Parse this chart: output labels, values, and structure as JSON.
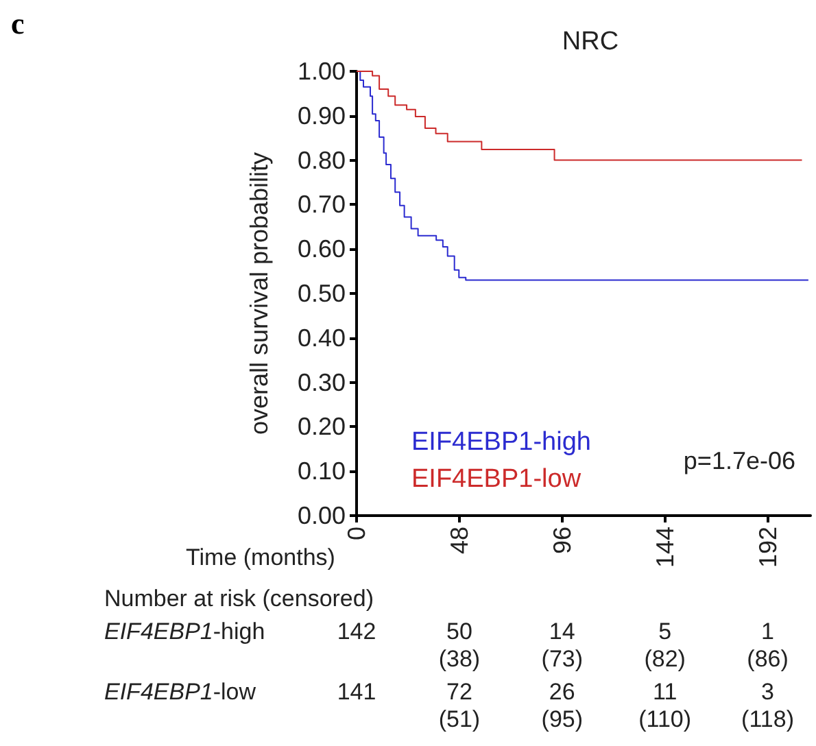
{
  "chart_data": {
    "type": "step",
    "title": "NRC",
    "xlabel": "Time (months)",
    "ylabel": "overall survival probability",
    "series": [
      {
        "name": "EIF4EBP1-high",
        "color": "#2b2bd0",
        "x": [
          0,
          1.7,
          3.2,
          6.4,
          7.4,
          8.9,
          10.6,
          12.7,
          13.8,
          16,
          18,
          20.2,
          22.3,
          25.5,
          28.7,
          37.2,
          40.3,
          42.5,
          45.7,
          47.8,
          51,
          211
        ],
        "values": [
          1.0,
          0.98,
          0.965,
          0.944,
          0.904,
          0.889,
          0.852,
          0.816,
          0.79,
          0.759,
          0.728,
          0.698,
          0.672,
          0.646,
          0.63,
          0.62,
          0.605,
          0.584,
          0.553,
          0.536,
          0.53,
          0.53
        ]
      },
      {
        "name": "EIF4EBP1-low",
        "color": "#cc2a2a",
        "x": [
          0,
          7.4,
          10.6,
          14.8,
          18,
          23.4,
          27.5,
          32,
          37,
          42.5,
          58.4,
          92.4,
          208
        ],
        "values": [
          1.0,
          0.99,
          0.96,
          0.944,
          0.924,
          0.914,
          0.898,
          0.872,
          0.86,
          0.842,
          0.824,
          0.8,
          0.8
        ]
      }
    ],
    "xlim": [
      0,
      212
    ],
    "xticks": [
      0,
      48,
      96,
      144,
      192
    ],
    "ylim": [
      0,
      1
    ],
    "yticks": [
      {
        "value": 0,
        "label": "0.00"
      },
      {
        "value": 0.1,
        "label": "0.10"
      },
      {
        "value": 0.2,
        "label": "0.20"
      },
      {
        "value": 0.3,
        "label": "0.30"
      },
      {
        "value": 0.4,
        "label": "0.40"
      },
      {
        "value": 0.5,
        "label": "0.50"
      },
      {
        "value": 0.6,
        "label": "0.60"
      },
      {
        "value": 0.7,
        "label": "0.70"
      },
      {
        "value": 0.8,
        "label": "0.80"
      },
      {
        "value": 0.9,
        "label": "0.90"
      },
      {
        "value": 1,
        "label": "1.00"
      }
    ],
    "legend": "bottom left",
    "grid": false,
    "marker": "none",
    "annotations": [
      "c",
      "p=1.7e-06",
      "Number at risk (censored)",
      "142",
      "50",
      "14",
      "5",
      "1",
      "(38)",
      "(73)",
      "(82)",
      "(86)",
      "141",
      "72",
      "26",
      "11",
      "3",
      "(51)",
      "(95)",
      "(110)",
      "(118)"
    ]
  }
}
